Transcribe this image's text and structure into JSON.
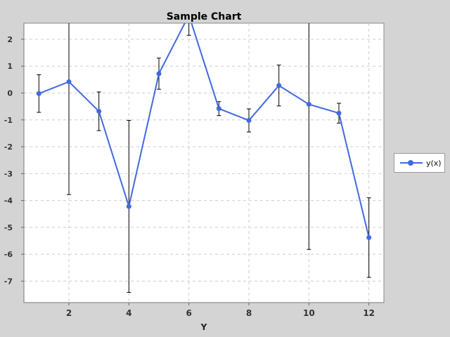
{
  "chart_data": {
    "type": "line",
    "title": "Sample Chart",
    "xlabel": "Y",
    "ylabel": "",
    "xlim": [
      0.5,
      12.5
    ],
    "ylim": [
      -7.8,
      2.6
    ],
    "xticks": [
      2,
      4,
      6,
      8,
      10,
      12
    ],
    "yticks": [
      -7,
      -6,
      -5,
      -4,
      -3,
      -2,
      -1,
      0,
      1,
      2
    ],
    "grid": true,
    "legend_position": "right",
    "series": [
      {
        "name": "y(x)",
        "color": "#4169e1",
        "x": [
          1,
          2,
          3,
          4,
          5,
          6,
          7,
          8,
          9,
          10,
          11,
          12
        ],
        "y": [
          -0.02,
          0.42,
          -0.68,
          -4.22,
          0.72,
          2.9,
          -0.58,
          -1.02,
          0.28,
          -0.42,
          -0.75,
          -5.38
        ],
        "error": [
          0.7,
          4.2,
          0.72,
          3.2,
          0.58,
          0.75,
          0.26,
          0.43,
          0.76,
          5.4,
          0.37,
          1.48
        ]
      }
    ]
  }
}
